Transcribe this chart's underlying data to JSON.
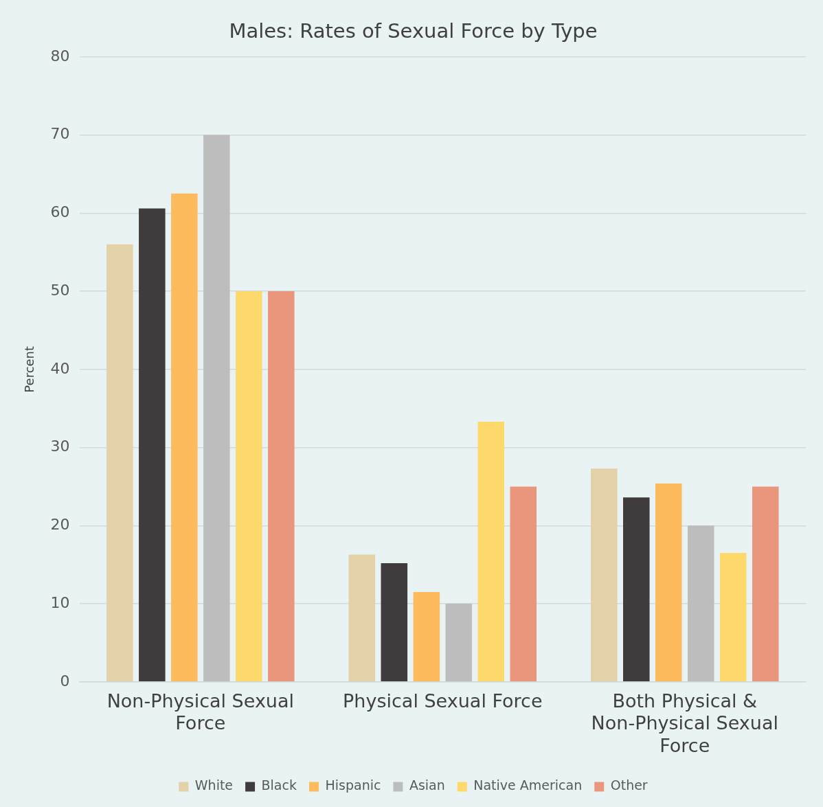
{
  "chart_data": {
    "type": "bar",
    "title": "Males: Rates of Sexual Force by Type",
    "ylabel": "Percent",
    "categories": [
      "Non-Physical Sexual Force",
      "Physical Sexual Force",
      "Both Physical & Non-Physical Sexual Force"
    ],
    "series": [
      {
        "name": "White",
        "color": "#e3d1a8",
        "values": [
          56,
          16.3,
          27.3
        ]
      },
      {
        "name": "Black",
        "color": "#403c3d",
        "values": [
          60.6,
          15.2,
          23.6
        ]
      },
      {
        "name": "Hispanic",
        "color": "#fdbb5e",
        "values": [
          62.5,
          11.5,
          25.4
        ]
      },
      {
        "name": "Asian",
        "color": "#bdbdbd",
        "values": [
          70,
          10,
          20
        ]
      },
      {
        "name": "Native American",
        "color": "#fdd96b",
        "values": [
          50,
          33.3,
          16.5
        ]
      },
      {
        "name": "Other",
        "color": "#ea967c",
        "values": [
          50,
          25,
          25
        ]
      }
    ],
    "ylim": [
      0,
      80
    ],
    "yticks": [
      0,
      10,
      20,
      30,
      40,
      50,
      60,
      70,
      80
    ],
    "grid": "y",
    "legend": "bottom"
  }
}
